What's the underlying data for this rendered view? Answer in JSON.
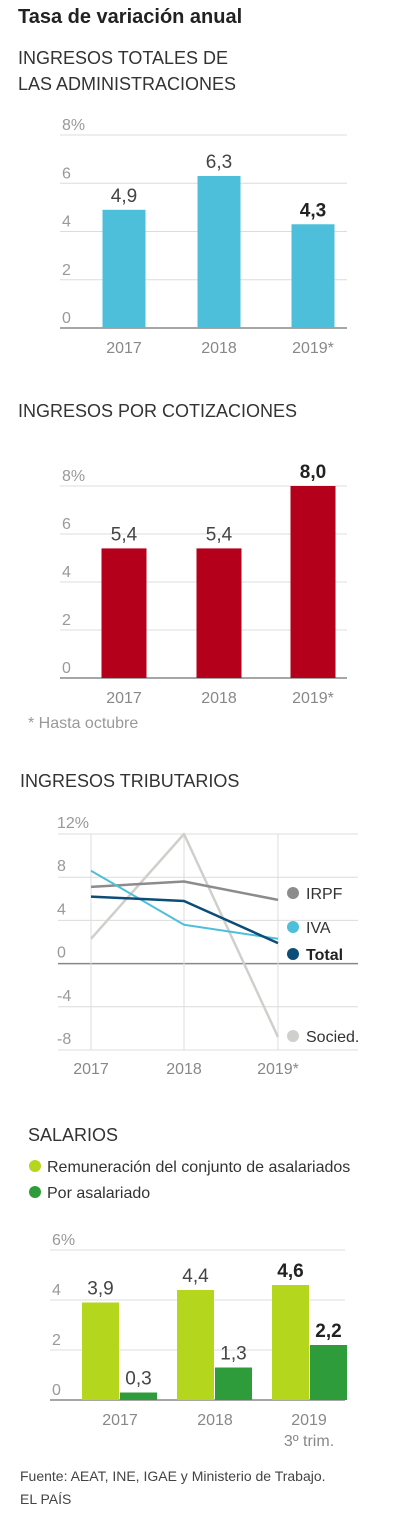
{
  "title": "Tasa de variación anual",
  "colors": {
    "grid": "#dcdcdc",
    "axis": "#888888",
    "chart1_bar": "#4ebfda",
    "chart2_bar": "#b5001b",
    "irpf": "#8c8c8c",
    "iva": "#4ebfda",
    "total": "#0c4d78",
    "socied": "#cfcfcb",
    "salarios_total": "#b4d61d",
    "salarios_por": "#2e9c3a"
  },
  "chart_data": [
    {
      "type": "bar",
      "title_lines": [
        "INGRESOS TOTALES DE",
        "LAS ADMINISTRACIONES"
      ],
      "categories": [
        "2017",
        "2018",
        "2019*"
      ],
      "values": [
        4.9,
        6.3,
        4.3
      ],
      "value_labels": [
        "4,9",
        "6,3",
        "4,3"
      ],
      "highlight_index": 2,
      "ylim": [
        0,
        8
      ],
      "yticks": [
        0,
        2,
        4,
        6,
        8
      ],
      "ytick_labels": [
        "0",
        "2",
        "4",
        "6",
        "8%"
      ],
      "grid": true
    },
    {
      "type": "bar",
      "title": "INGRESOS POR COTIZACIONES",
      "categories": [
        "2017",
        "2018",
        "2019*"
      ],
      "values": [
        5.4,
        5.4,
        8.0
      ],
      "value_labels": [
        "5,4",
        "5,4",
        "8,0"
      ],
      "highlight_index": 2,
      "ylim": [
        0,
        8
      ],
      "yticks": [
        0,
        2,
        4,
        6,
        8
      ],
      "ytick_labels": [
        "0",
        "2",
        "4",
        "6",
        "8%"
      ],
      "grid": true,
      "note": "* Hasta octubre"
    },
    {
      "type": "line",
      "title": "INGRESOS TRIBUTARIOS",
      "x": [
        "2017",
        "2018",
        "2019*"
      ],
      "ylim": [
        -8,
        12
      ],
      "yticks": [
        -8,
        -4,
        0,
        4,
        8,
        12
      ],
      "ytick_labels": [
        "-8",
        "-4",
        "0",
        "4",
        "8",
        "12%"
      ],
      "grid": true,
      "series": [
        {
          "name": "IRPF",
          "values": [
            7.1,
            7.6,
            5.9
          ]
        },
        {
          "name": "IVA",
          "values": [
            8.6,
            3.6,
            2.3
          ]
        },
        {
          "name": "Total",
          "values": [
            6.2,
            5.8,
            1.9
          ]
        },
        {
          "name": "Socied.",
          "values": [
            2.3,
            12.0,
            -6.8
          ]
        }
      ],
      "legend_position": "right"
    },
    {
      "type": "bar",
      "title": "SALARIOS",
      "categories": [
        "2017",
        "2018",
        "2019"
      ],
      "category_sublabels": [
        "",
        "",
        "3º trim."
      ],
      "series": [
        {
          "name": "Remuneración del conjunto de asalariados",
          "values": [
            3.9,
            4.4,
            4.6
          ],
          "value_labels": [
            "3,9",
            "4,4",
            "4,6"
          ]
        },
        {
          "name": "Por asalariado",
          "values": [
            0.3,
            1.3,
            2.2
          ],
          "value_labels": [
            "0,3",
            "1,3",
            "2,2"
          ]
        }
      ],
      "highlight_index": 2,
      "ylim": [
        0,
        6
      ],
      "yticks": [
        0,
        2,
        4,
        6
      ],
      "ytick_labels": [
        "0",
        "2",
        "4",
        "6%"
      ],
      "grid": true,
      "legend_position": "top"
    }
  ],
  "source": {
    "line1": "Fuente: AEAT, INE, IGAE y Ministerio de Trabajo.",
    "line2": "EL PAÍS"
  }
}
